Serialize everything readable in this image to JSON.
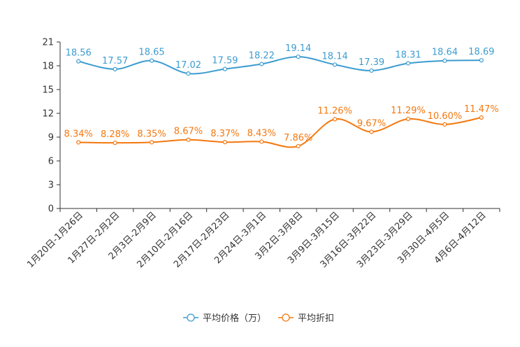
{
  "chart_data": {
    "type": "line",
    "title": "",
    "xlabel": "",
    "ylabel": "",
    "ylim": [
      0,
      21
    ],
    "yticks": [
      0,
      3,
      6,
      9,
      12,
      15,
      18,
      21
    ],
    "grid": false,
    "legend_position": "bottom-center",
    "categories": [
      "1月20日-1月26日",
      "1月27日-2月2日",
      "2月3日-2月9日",
      "2月10日-2月16日",
      "2月17日-2月23日",
      "2月24日-3月1日",
      "3月2日-3月8日",
      "3月9日-3月15日",
      "3月16日-3月22日",
      "3月23日-3月29日",
      "3月30日-4月5日",
      "4月6日-4月12日"
    ],
    "series": [
      {
        "name": "平均价格（万）",
        "color": "#3c9cd0",
        "values": [
          18.56,
          17.57,
          18.65,
          17.02,
          17.59,
          18.22,
          19.14,
          18.14,
          17.39,
          18.31,
          18.64,
          18.69
        ],
        "labels": [
          "18.56",
          "17.57",
          "18.65",
          "17.02",
          "17.59",
          "18.22",
          "19.14",
          "18.14",
          "17.39",
          "18.31",
          "18.64",
          "18.69"
        ]
      },
      {
        "name": "平均折扣",
        "color": "#f5780f",
        "values": [
          8.34,
          8.28,
          8.35,
          8.67,
          8.37,
          8.43,
          7.86,
          11.26,
          9.67,
          11.29,
          10.6,
          11.47
        ],
        "labels": [
          "8.34%",
          "8.28%",
          "8.35%",
          "8.67%",
          "8.37%",
          "8.43%",
          "7.86%",
          "11.26%",
          "9.67%",
          "11.29%",
          "10.60%",
          "11.47%"
        ]
      }
    ]
  }
}
